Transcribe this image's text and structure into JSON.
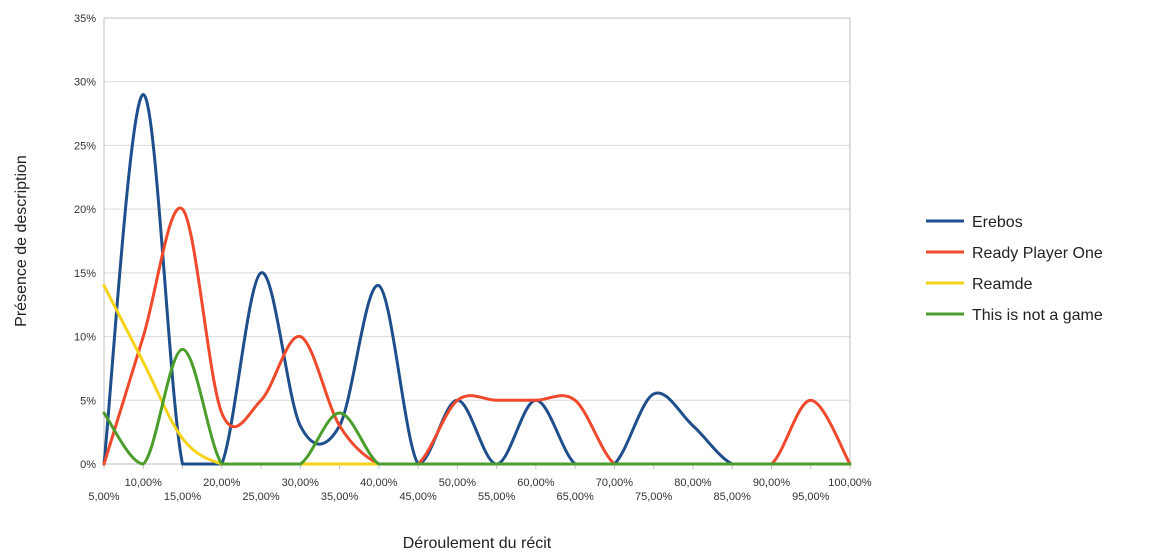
{
  "chart_data": {
    "type": "line",
    "smooth": true,
    "xlabel": "Déroulement du récit",
    "ylabel": "Présence de description",
    "x_tick_labels": [
      "5,00%",
      "10,00%",
      "15,00%",
      "20,00%",
      "25,00%",
      "30,00%",
      "35,00%",
      "40,00%",
      "45,00%",
      "50,00%",
      "55,00%",
      "60,00%",
      "65,00%",
      "70,00%",
      "75,00%",
      "80,00%",
      "85,00%",
      "90,00%",
      "95,00%",
      "100,00%"
    ],
    "x": [
      5,
      10,
      15,
      20,
      25,
      30,
      35,
      40,
      45,
      50,
      55,
      60,
      65,
      70,
      75,
      80,
      85,
      90,
      95,
      100
    ],
    "y_tick_labels": [
      "0%",
      "5%",
      "10%",
      "15%",
      "20%",
      "25%",
      "30%",
      "35%"
    ],
    "ylim": [
      0,
      35
    ],
    "grid": true,
    "legend_position": "right",
    "series": [
      {
        "name": "Erebos",
        "color": "#1f4e8c",
        "values": [
          0,
          29,
          0,
          0,
          15,
          3,
          3,
          14,
          0,
          5,
          0,
          5,
          0,
          0,
          5.5,
          3,
          0,
          0,
          0,
          0
        ]
      },
      {
        "name": "Ready Player One",
        "color": "#f0492b",
        "values": [
          0,
          10,
          20,
          4,
          5,
          10,
          3,
          0,
          0,
          5,
          5,
          5,
          5,
          0,
          0,
          0,
          0,
          0,
          5,
          0
        ]
      },
      {
        "name": "Reamde",
        "color": "#f5d319",
        "values": [
          14,
          8,
          2,
          0,
          0,
          0,
          0,
          0,
          0,
          0,
          0,
          0,
          0,
          0,
          0,
          0,
          0,
          0,
          0,
          0
        ]
      },
      {
        "name": "This is not a game",
        "color": "#4b9e2c",
        "values": [
          4,
          0,
          9,
          0,
          0,
          0,
          4,
          0,
          0,
          0,
          0,
          0,
          0,
          0,
          0,
          0,
          0,
          0,
          0,
          0
        ]
      }
    ]
  }
}
